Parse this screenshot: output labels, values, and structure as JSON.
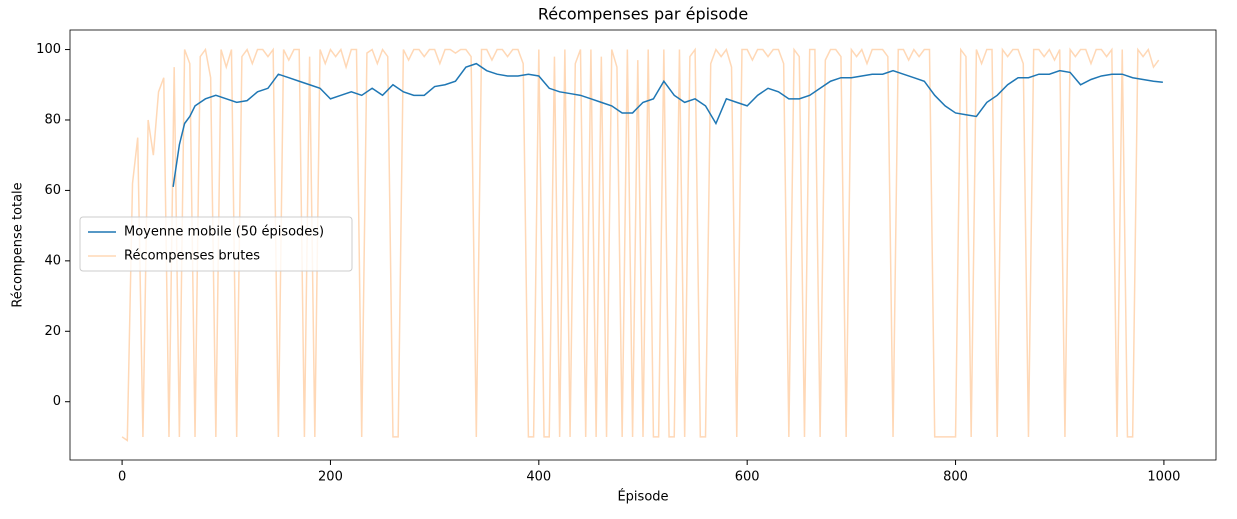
{
  "chart_data": {
    "type": "line",
    "title": "Récompenses par épisode",
    "x_label": "Épisode",
    "y_label": "Récompense totale",
    "xlim": [
      -50,
      1050
    ],
    "ylim": [
      -16.55,
      105.55
    ],
    "xticks": [
      0,
      200,
      400,
      600,
      800,
      1000
    ],
    "yticks": [
      0,
      20,
      40,
      60,
      80,
      100
    ],
    "legend": "center left",
    "series": [
      {
        "name": "Moyenne mobile (50 épisodes)",
        "color": "#1f77b4",
        "x": [
          49,
          55,
          60,
          65,
          70,
          80,
          90,
          100,
          110,
          120,
          130,
          140,
          150,
          160,
          170,
          180,
          190,
          200,
          210,
          220,
          230,
          240,
          250,
          260,
          270,
          280,
          290,
          300,
          310,
          320,
          330,
          340,
          350,
          360,
          370,
          380,
          390,
          400,
          410,
          420,
          430,
          440,
          450,
          460,
          470,
          480,
          490,
          500,
          510,
          520,
          530,
          540,
          550,
          560,
          570,
          580,
          590,
          600,
          610,
          620,
          630,
          640,
          650,
          660,
          670,
          680,
          690,
          700,
          710,
          720,
          730,
          740,
          750,
          760,
          770,
          780,
          790,
          800,
          810,
          820,
          830,
          840,
          850,
          860,
          870,
          880,
          890,
          900,
          910,
          920,
          930,
          940,
          950,
          960,
          970,
          980,
          990,
          999
        ],
        "values": [
          61,
          73,
          79,
          81,
          84,
          86,
          87,
          86,
          85,
          85.5,
          88,
          89,
          93,
          92,
          91,
          90,
          89,
          86,
          87,
          88,
          87,
          89,
          87,
          90,
          88,
          87,
          87,
          89.5,
          90,
          91,
          95,
          96,
          94,
          93,
          92.5,
          92.5,
          93,
          92.5,
          89,
          88,
          87.5,
          87,
          86,
          85,
          84,
          82,
          82,
          85,
          86,
          91,
          87,
          85,
          86,
          84,
          79,
          86,
          85,
          84,
          87,
          89,
          88,
          86,
          86,
          87,
          89,
          91,
          92,
          92,
          92.5,
          93,
          93,
          94,
          93,
          92,
          91,
          87,
          84,
          82,
          81.5,
          81,
          85,
          87,
          90,
          92,
          92,
          93,
          93,
          94,
          93.5,
          90,
          91.5,
          92.5,
          93,
          93,
          92,
          91.5,
          91,
          90.7
        ]
      },
      {
        "name": "Récompenses brutes",
        "color": "#ff7f0e",
        "x": [
          0,
          5,
          10,
          15,
          20,
          25,
          30,
          35,
          40,
          45,
          50,
          55,
          60,
          65,
          70,
          75,
          80,
          85,
          90,
          95,
          100,
          105,
          110,
          115,
          120,
          125,
          130,
          135,
          140,
          145,
          150,
          155,
          160,
          165,
          170,
          175,
          180,
          185,
          190,
          195,
          200,
          205,
          210,
          215,
          220,
          225,
          230,
          235,
          240,
          245,
          250,
          255,
          260,
          265,
          270,
          275,
          280,
          285,
          290,
          295,
          300,
          305,
          310,
          315,
          320,
          325,
          330,
          335,
          340,
          345,
          350,
          355,
          360,
          365,
          370,
          375,
          380,
          385,
          390,
          395,
          400,
          405,
          410,
          415,
          420,
          425,
          430,
          435,
          440,
          445,
          450,
          455,
          460,
          465,
          470,
          475,
          480,
          485,
          490,
          495,
          500,
          505,
          510,
          515,
          520,
          525,
          530,
          535,
          540,
          545,
          550,
          555,
          560,
          565,
          570,
          575,
          580,
          585,
          590,
          595,
          600,
          605,
          610,
          615,
          620,
          625,
          630,
          635,
          640,
          645,
          650,
          655,
          660,
          665,
          670,
          675,
          680,
          685,
          690,
          695,
          700,
          705,
          710,
          715,
          720,
          725,
          730,
          735,
          740,
          745,
          750,
          755,
          760,
          765,
          770,
          775,
          780,
          785,
          790,
          795,
          800,
          805,
          810,
          815,
          820,
          825,
          830,
          835,
          840,
          845,
          850,
          855,
          860,
          865,
          870,
          875,
          880,
          885,
          890,
          895,
          900,
          905,
          910,
          915,
          920,
          925,
          930,
          935,
          940,
          945,
          950,
          955,
          960,
          965,
          970,
          975,
          980,
          985,
          990,
          995
        ],
        "values": [
          -10,
          -11,
          62,
          75,
          -10,
          80,
          70,
          88,
          92,
          -10,
          95,
          -10,
          100,
          96,
          -10,
          98,
          100,
          92,
          -10,
          100,
          95,
          100,
          -10,
          98,
          100,
          96,
          100,
          100,
          98,
          100,
          -10,
          100,
          97,
          100,
          100,
          -10,
          98,
          -10,
          100,
          96,
          100,
          98,
          100,
          95,
          100,
          100,
          -10,
          99,
          100,
          96,
          100,
          98,
          -10,
          -10,
          100,
          97,
          100,
          100,
          98,
          100,
          100,
          96,
          100,
          100,
          99,
          100,
          100,
          98,
          -10,
          100,
          100,
          97,
          100,
          100,
          98,
          100,
          100,
          96,
          -10,
          -10,
          100,
          -10,
          -10,
          98,
          -10,
          100,
          -10,
          96,
          100,
          -10,
          100,
          -10,
          98,
          -10,
          100,
          95,
          -10,
          100,
          -10,
          97,
          -10,
          100,
          -10,
          -10,
          100,
          -10,
          -10,
          100,
          -10,
          98,
          100,
          -10,
          -10,
          96,
          100,
          98,
          100,
          95,
          -10,
          100,
          100,
          97,
          100,
          100,
          98,
          100,
          100,
          96,
          -10,
          100,
          98,
          -10,
          100,
          100,
          -10,
          97,
          100,
          100,
          98,
          -10,
          100,
          98,
          100,
          96,
          100,
          100,
          100,
          98,
          -10,
          100,
          100,
          97,
          100,
          98,
          100,
          100,
          -10,
          -10,
          -10,
          -10,
          -10,
          100,
          98,
          -10,
          100,
          96,
          100,
          100,
          -10,
          100,
          98,
          100,
          100,
          96,
          -10,
          100,
          100,
          98,
          100,
          97,
          100,
          -10,
          100,
          98,
          100,
          100,
          96,
          100,
          100,
          98,
          100,
          -10,
          100,
          -10,
          -10,
          100,
          98,
          100,
          95,
          97
        ]
      }
    ]
  }
}
